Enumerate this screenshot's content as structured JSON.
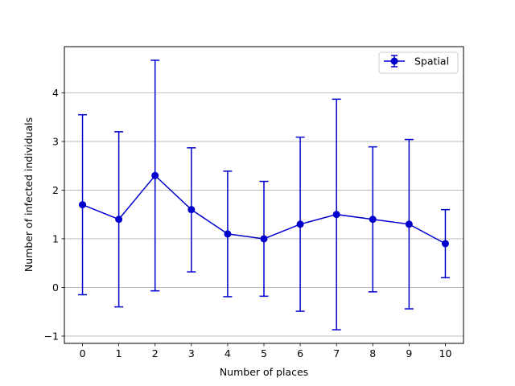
{
  "chart_data": {
    "type": "line",
    "title": "",
    "xlabel": "Number of places",
    "ylabel": "Number of infected individuals",
    "xlim": [
      -0.5,
      10.5
    ],
    "ylim": [
      -1.15,
      4.95
    ],
    "xticks": [
      0,
      1,
      2,
      3,
      4,
      5,
      6,
      7,
      8,
      9,
      10
    ],
    "yticks": [
      -1,
      0,
      1,
      2,
      3,
      4
    ],
    "grid": "y",
    "legend_position": "top-right",
    "series": [
      {
        "name": "Spatial",
        "color": "#0000cd",
        "x": [
          0,
          1,
          2,
          3,
          4,
          5,
          6,
          7,
          8,
          9,
          10
        ],
        "y": [
          1.7,
          1.4,
          2.3,
          1.6,
          1.1,
          1.0,
          1.3,
          1.5,
          1.4,
          1.3,
          0.9
        ],
        "error_low": [
          -0.15,
          -0.4,
          -0.07,
          0.32,
          -0.19,
          -0.18,
          -0.49,
          -0.87,
          -0.09,
          -0.44,
          0.2
        ],
        "error_high": [
          3.55,
          3.2,
          4.67,
          2.87,
          2.39,
          2.18,
          3.09,
          3.87,
          2.89,
          3.04,
          1.6
        ]
      }
    ]
  }
}
